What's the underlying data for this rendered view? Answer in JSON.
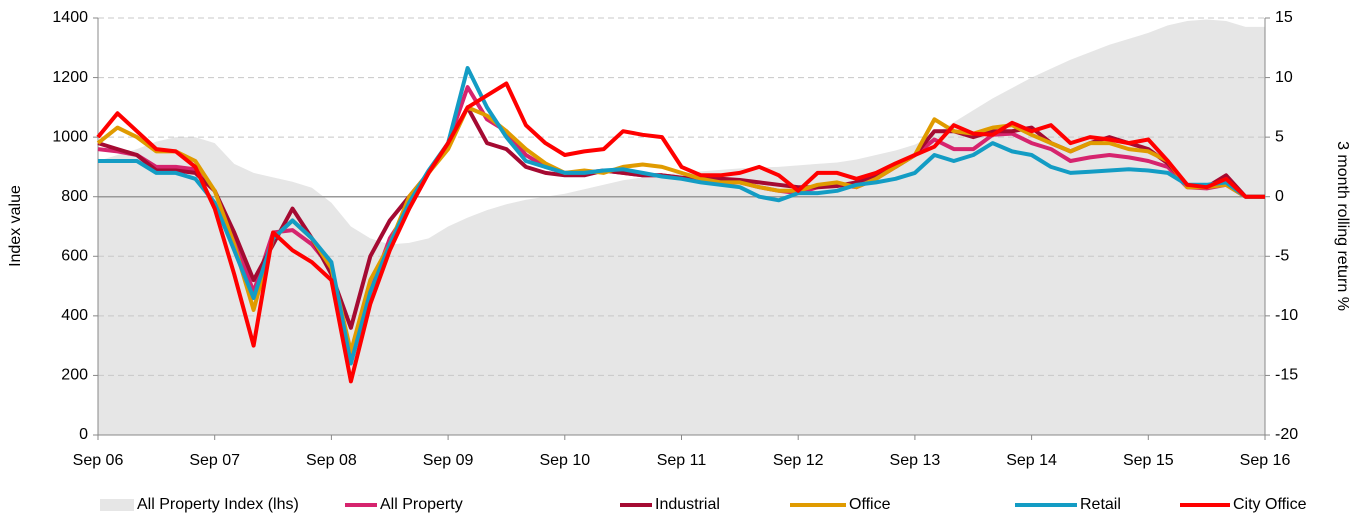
{
  "chart_data": {
    "type": "line",
    "ylabel": "Index value",
    "y2label": "3 month rolling return %",
    "categories": [
      "Sep 06",
      null,
      null,
      null,
      null,
      null,
      "Sep 07",
      null,
      null,
      null,
      null,
      null,
      "Sep 08",
      null,
      null,
      null,
      null,
      null,
      "Sep 09",
      null,
      null,
      null,
      null,
      null,
      "Sep 10",
      null,
      null,
      null,
      null,
      null,
      "Sep 11",
      null,
      null,
      null,
      null,
      null,
      "Sep 12",
      null,
      null,
      null,
      null,
      null,
      "Sep 13",
      null,
      null,
      null,
      null,
      null,
      "Sep 14",
      null,
      null,
      null,
      null,
      null,
      "Sep 15",
      null,
      null,
      null,
      null,
      null,
      "Sep 16"
    ],
    "ylim": [
      0,
      1400
    ],
    "yticks": [
      0,
      200,
      400,
      600,
      800,
      1000,
      1200,
      1400
    ],
    "y2lim": [
      -20,
      15
    ],
    "y2ticks": [
      -20,
      -15,
      -10,
      -5,
      0,
      5,
      10,
      15
    ],
    "grid": true,
    "legend": "bottom",
    "series": [
      {
        "name": "All Property Index (lhs)",
        "color": "#e6e6e6",
        "style": "area",
        "values": [
          920,
          940,
          960,
          985,
          1000,
          1000,
          980,
          910,
          880,
          865,
          850,
          830,
          780,
          700,
          660,
          640,
          645,
          660,
          700,
          730,
          755,
          775,
          790,
          800,
          810,
          825,
          840,
          855,
          865,
          875,
          880,
          885,
          890,
          895,
          898,
          900,
          905,
          910,
          915,
          925,
          940,
          955,
          975,
          1010,
          1050,
          1090,
          1130,
          1165,
          1200,
          1230,
          1260,
          1285,
          1310,
          1330,
          1350,
          1375,
          1390,
          1395,
          1390,
          1370,
          1370
        ]
      },
      {
        "name": "All Property",
        "color": "#d6246e",
        "axis": "y2",
        "values": [
          4,
          3.8,
          3.5,
          2.5,
          2.5,
          2.3,
          0.5,
          -3.5,
          -8,
          -3,
          -2.8,
          -4,
          -6,
          -13.5,
          -8,
          -3.5,
          -1,
          2,
          4.5,
          9.2,
          6.5,
          5.5,
          3.5,
          2.5,
          2,
          2,
          2.2,
          2,
          1.8,
          1.8,
          1.6,
          1.5,
          1.2,
          1.2,
          0.8,
          0.5,
          0.3,
          0.8,
          1,
          0.8,
          1.5,
          2.5,
          3.5,
          4.8,
          4,
          4,
          5.2,
          5.3,
          4.5,
          4,
          3,
          3.3,
          3.5,
          3.3,
          3,
          2.5,
          0.8,
          0.7,
          1,
          0,
          0
        ]
      },
      {
        "name": "Industrial",
        "color": "#a50a32",
        "axis": "y2",
        "values": [
          4.5,
          4,
          3.5,
          2.2,
          2.2,
          2,
          0.5,
          -3,
          -7,
          -4,
          -1,
          -3.5,
          -6.5,
          -11,
          -5,
          -2,
          0,
          2,
          4.5,
          7.5,
          4.5,
          4,
          2.5,
          2,
          1.8,
          1.8,
          2.2,
          2,
          1.8,
          1.8,
          1.6,
          1.5,
          1.5,
          1.4,
          1.2,
          1,
          0.8,
          0.8,
          0.9,
          1.2,
          1.8,
          2.5,
          3.5,
          5.5,
          5.5,
          5,
          5.5,
          5.5,
          5.8,
          4.5,
          3.8,
          4.5,
          5,
          4.5,
          4,
          2.8,
          1,
          0.8,
          1.8,
          0,
          0
        ]
      },
      {
        "name": "Office",
        "color": "#e09b00",
        "axis": "y2",
        "values": [
          4.5,
          5.8,
          5,
          3.8,
          3.8,
          3,
          0.5,
          -4,
          -9.5,
          -3.5,
          -2,
          -3.5,
          -6,
          -13,
          -7,
          -4,
          0,
          2,
          4,
          7.5,
          6.8,
          5.5,
          4,
          2.8,
          2,
          2.2,
          2,
          2.5,
          2.7,
          2.5,
          2,
          1.5,
          1.2,
          1.2,
          0.8,
          0.5,
          0.5,
          1,
          1.2,
          0.8,
          1.5,
          2.5,
          3.5,
          6.5,
          5.5,
          5.3,
          5.8,
          6,
          5.2,
          4.5,
          3.8,
          4.5,
          4.5,
          4,
          3.8,
          3,
          0.8,
          0.8,
          1,
          0,
          0
        ]
      },
      {
        "name": "Retail",
        "color": "#139cc4",
        "axis": "y2",
        "values": [
          3,
          3,
          3,
          2,
          2,
          1.5,
          -0.5,
          -4.5,
          -8.5,
          -3.5,
          -2,
          -3.5,
          -5.5,
          -14,
          -8,
          -4,
          -0.5,
          2.2,
          4.5,
          10.8,
          7.5,
          5,
          3,
          2.5,
          2,
          2,
          2.2,
          2.3,
          2,
          1.7,
          1.5,
          1.2,
          1,
          0.8,
          0,
          -0.3,
          0.3,
          0.3,
          0.5,
          1,
          1.2,
          1.5,
          2,
          3.5,
          3,
          3.5,
          4.5,
          3.8,
          3.5,
          2.5,
          2,
          2.1,
          2.2,
          2.3,
          2.2,
          2,
          1,
          1,
          1.2,
          0,
          0
        ]
      },
      {
        "name": "City Office",
        "color": "#ff0000",
        "axis": "y2",
        "values": [
          5,
          7,
          5.5,
          4,
          3.8,
          2.5,
          -1,
          -6.5,
          -12.5,
          -3,
          -4.5,
          -5.5,
          -7,
          -15.5,
          -9,
          -4.5,
          -1,
          2,
          4.5,
          7.5,
          8.5,
          9.5,
          6,
          4.5,
          3.5,
          3.8,
          4,
          5.5,
          5.2,
          5,
          2.5,
          1.8,
          1.8,
          2,
          2.5,
          1.8,
          0.5,
          2,
          2,
          1.5,
          2,
          2.8,
          3.5,
          4.2,
          6,
          5.3,
          5.2,
          6.2,
          5.5,
          6,
          4.5,
          5,
          4.8,
          4.5,
          4.8,
          3,
          1,
          0.8,
          1.5,
          0,
          0
        ]
      }
    ]
  }
}
